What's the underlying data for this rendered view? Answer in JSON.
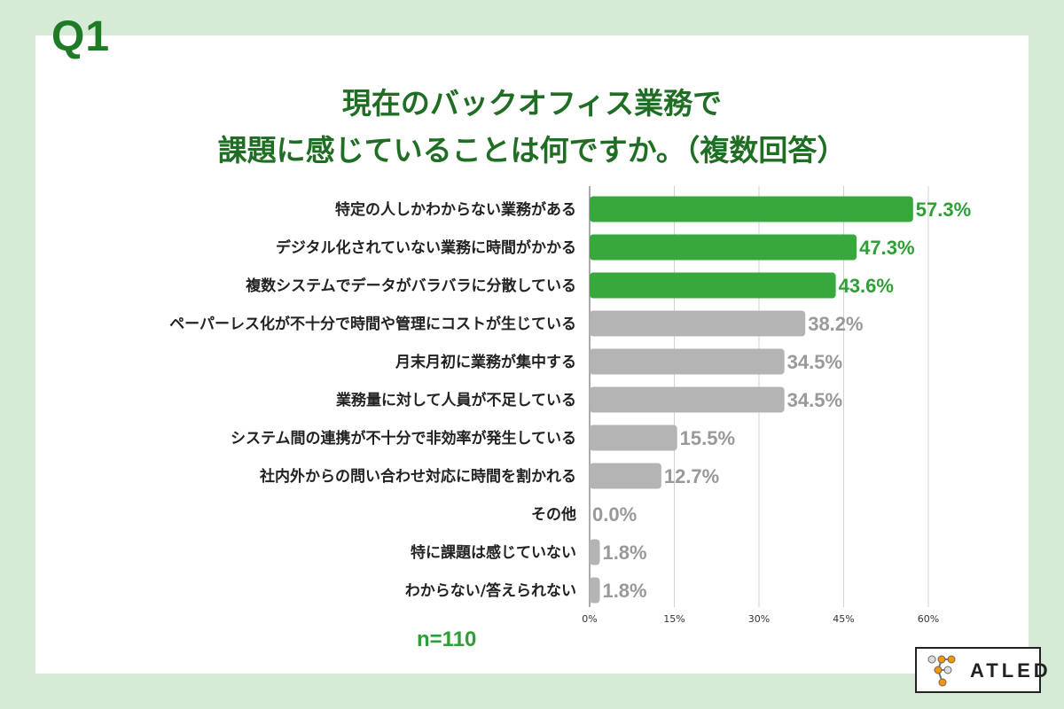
{
  "question_label": "Q1",
  "title_line1": "現在のバックオフィス業務で",
  "title_line2": "課題に感じていることは何ですか。（複数回答）",
  "sample_size": "n=110",
  "logo_text": "ATLED",
  "colors": {
    "highlight": "#36a83c",
    "normal": "#b4b4b4",
    "highlight_text": "#2e9e35",
    "normal_text": "#999999"
  },
  "chart_data": {
    "type": "bar",
    "orientation": "horizontal",
    "categories": [
      "特定の人しかわからない業務がある",
      "デジタル化されていない業務に時間がかかる",
      "複数システムでデータがバラバラに分散している",
      "ペーパーレス化が不十分で時間や管理にコストが生じている",
      "月末月初に業務が集中する",
      "業務量に対して人員が不足している",
      "システム間の連携が不十分で非効率が発生している",
      "社内外からの問い合わせ対応に時間を割かれる",
      "その他",
      "特に課題は感じていない",
      "わからない/答えられない"
    ],
    "values": [
      57.3,
      47.3,
      43.6,
      38.2,
      34.5,
      34.5,
      15.5,
      12.7,
      0.0,
      1.8,
      1.8
    ],
    "labels": [
      "57.3%",
      "47.3%",
      "43.6%",
      "38.2%",
      "34.5%",
      "34.5%",
      "15.5%",
      "12.7%",
      "0.0%",
      "1.8%",
      "1.8%"
    ],
    "highlighted": [
      true,
      true,
      true,
      false,
      false,
      false,
      false,
      false,
      false,
      false,
      false
    ],
    "xticks": [
      "0%",
      "15%",
      "30%",
      "45%",
      "60%"
    ],
    "xtick_values": [
      0,
      15,
      30,
      45,
      60
    ],
    "xlim": [
      0,
      60
    ],
    "grid": true
  }
}
